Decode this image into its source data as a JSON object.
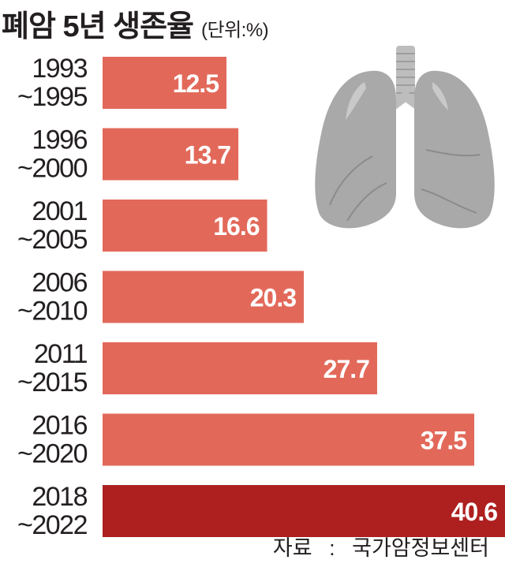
{
  "header": {
    "title": "폐암 5년 생존율",
    "unit": "(단위:%)"
  },
  "source": {
    "label": "자료",
    "separator": ":",
    "value": "국가암정보센터"
  },
  "icons": {
    "illustration": "lungs-icon"
  },
  "colors": {
    "bar": "#e2695a",
    "highlight": "#ae1f1f",
    "lung": "#a9a9a9",
    "lung_dark": "#8b8b8b",
    "trachea": "#bdbdbd"
  },
  "chart_data": {
    "type": "bar",
    "orientation": "horizontal",
    "title": "폐암 5년 생존율",
    "unit": "(단위:%)",
    "categories": [
      [
        "1993",
        "~1995"
      ],
      [
        "1996",
        "~2000"
      ],
      [
        "2001",
        "~2005"
      ],
      [
        "2006",
        "~2010"
      ],
      [
        "2011",
        "~2015"
      ],
      [
        "2016",
        "~2020"
      ],
      [
        "2018",
        "~2022"
      ]
    ],
    "values": [
      12.5,
      13.7,
      16.6,
      20.3,
      27.7,
      37.5,
      40.6
    ],
    "value_labels": [
      "12.5",
      "13.7",
      "16.6",
      "20.3",
      "27.7",
      "37.5",
      "40.6"
    ],
    "highlight_index": 6,
    "xlim": [
      0,
      40.6
    ],
    "grid": false,
    "legend": "none"
  }
}
